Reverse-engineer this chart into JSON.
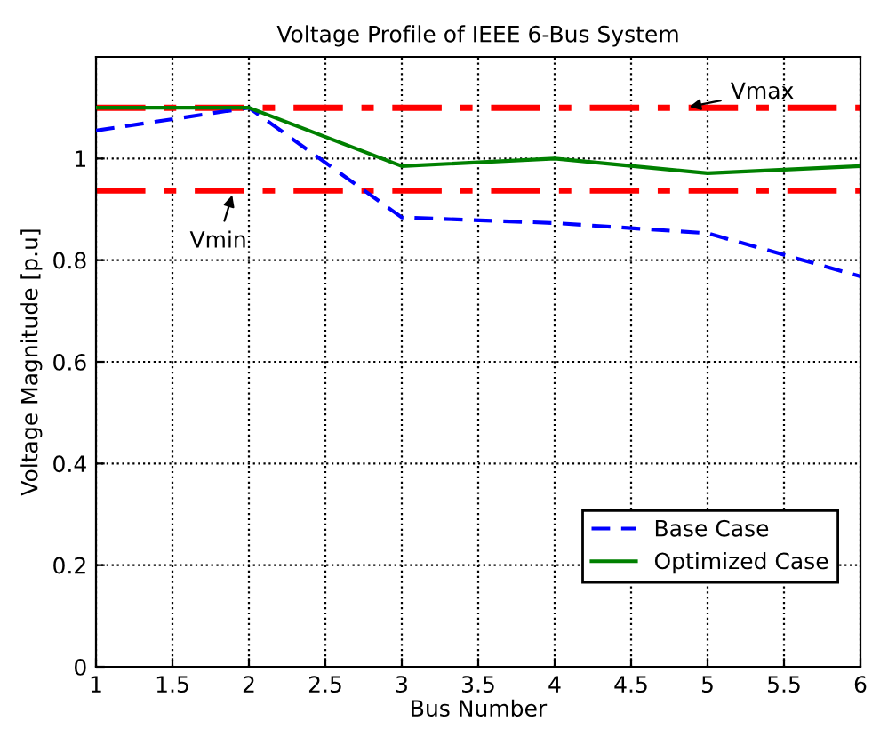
{
  "chart_data": {
    "type": "line",
    "title": "Voltage Profile of IEEE 6-Bus System",
    "xlabel": "Bus Number",
    "ylabel": "Voltage Magnitude [p.u]",
    "x": [
      1,
      2,
      3,
      4,
      5,
      6
    ],
    "series": [
      {
        "name": "Base Case",
        "color": "#0000ff",
        "line_style": "dashed",
        "values": [
          1.055,
          1.1,
          0.884,
          0.873,
          0.853,
          0.768
        ]
      },
      {
        "name": "Optimized Case",
        "color": "#008000",
        "line_style": "solid",
        "values": [
          1.1,
          1.1,
          0.985,
          1.0,
          0.971,
          0.985
        ]
      }
    ],
    "ref_lines": [
      {
        "axis": "y",
        "value": 1.1,
        "color": "#ff0000",
        "line_style": "dashdot"
      },
      {
        "axis": "y",
        "value": 0.937,
        "color": "#ff0000",
        "line_style": "dashdot"
      }
    ],
    "annotations": [
      {
        "text": "Vmax",
        "x": 4.85,
        "y": 1.1
      },
      {
        "text": "Vmin",
        "x": 1.9,
        "y": 0.937
      }
    ],
    "xlim": [
      1,
      6
    ],
    "ylim": [
      0,
      1.2
    ],
    "xticks": [
      1,
      1.5,
      2,
      2.5,
      3,
      3.5,
      4,
      4.5,
      5,
      5.5,
      6
    ],
    "yticks": [
      0,
      0.2,
      0.4,
      0.6,
      0.8,
      1
    ],
    "grid": true,
    "legend": "bottom right",
    "marker": "none"
  }
}
